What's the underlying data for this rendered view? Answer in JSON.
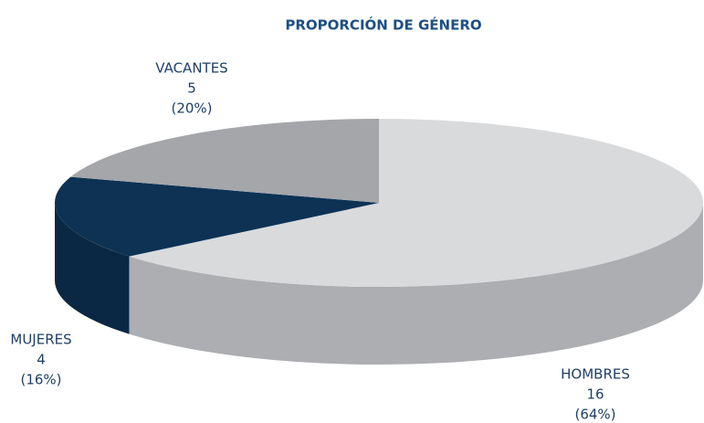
{
  "chart_data": {
    "type": "pie3d",
    "title": "PROPORCIÓN DE GÉNERO",
    "categories": [
      "HOMBRES",
      "MUJERES",
      "VACANTES"
    ],
    "values": [
      16,
      4,
      5
    ],
    "percent_labels": [
      "(64%)",
      "(16%)",
      "(20%)"
    ],
    "colors": [
      "#d9dadc",
      "#0d3254",
      "#a4a6a9"
    ],
    "side_colors": [
      "#acaeb1",
      "#0a2844",
      "#8c8e91"
    ],
    "start_angle": 0,
    "direction": "clockwise"
  }
}
